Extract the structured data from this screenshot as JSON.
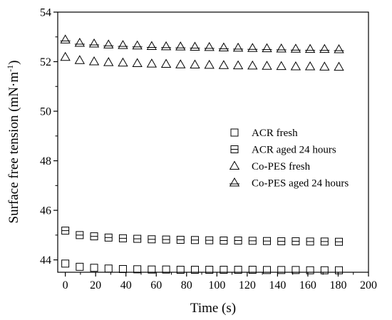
{
  "chart_data": {
    "type": "scatter",
    "xlabel": "Time (s)",
    "ylabel_main": "Surface free tension (mN·m",
    "ylabel_sup": "-1",
    "ylabel_close": ")",
    "xlim": [
      -5,
      200
    ],
    "ylim": [
      43.5,
      54
    ],
    "xticks": [
      0,
      20,
      40,
      60,
      80,
      100,
      120,
      140,
      160,
      180,
      200
    ],
    "yticks": [
      44,
      46,
      48,
      50,
      52,
      54
    ],
    "x": [
      0,
      9.5,
      19,
      28.5,
      38,
      47.5,
      57,
      66.5,
      76,
      85.5,
      95,
      104.5,
      114,
      123.5,
      133,
      142.5,
      152,
      161.5,
      171,
      180.5
    ],
    "legend_position": "right-middle",
    "series": [
      {
        "name": "ACR fresh",
        "marker": "square",
        "values": [
          43.85,
          43.72,
          43.68,
          43.65,
          43.63,
          43.62,
          43.61,
          43.61,
          43.6,
          43.6,
          43.6,
          43.6,
          43.6,
          43.6,
          43.59,
          43.59,
          43.59,
          43.58,
          43.58,
          43.58
        ]
      },
      {
        "name": "ACR aged 24 hours",
        "marker": "square-line",
        "values": [
          45.18,
          45.0,
          44.95,
          44.9,
          44.87,
          44.85,
          44.83,
          44.82,
          44.81,
          44.8,
          44.79,
          44.78,
          44.78,
          44.77,
          44.76,
          44.75,
          44.75,
          44.74,
          44.74,
          44.73
        ]
      },
      {
        "name": "Co-PES fresh",
        "marker": "triangle",
        "values": [
          52.18,
          52.05,
          52.0,
          51.97,
          51.95,
          51.93,
          51.91,
          51.9,
          51.88,
          51.87,
          51.86,
          51.85,
          51.84,
          51.83,
          51.82,
          51.81,
          51.8,
          51.8,
          51.79,
          51.78
        ]
      },
      {
        "name": "Co-PES aged 24 hours",
        "marker": "triangle-line",
        "values": [
          52.88,
          52.75,
          52.72,
          52.68,
          52.66,
          52.64,
          52.62,
          52.61,
          52.6,
          52.59,
          52.58,
          52.56,
          52.55,
          52.54,
          52.53,
          52.52,
          52.51,
          52.5,
          52.5,
          52.49
        ]
      }
    ]
  }
}
